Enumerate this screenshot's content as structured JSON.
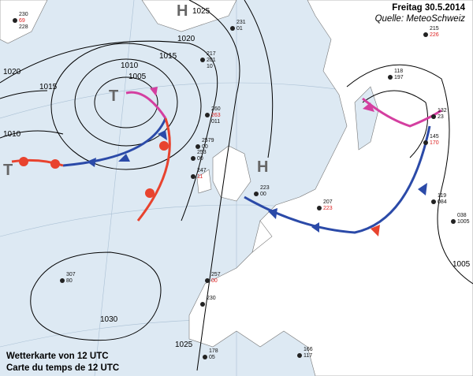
{
  "header": {
    "date": "Freitag 30.5.2014",
    "source": "Quelle: MeteoSchweiz"
  },
  "caption": {
    "line_de": "Wetterkarte von 12 UTC",
    "line_fr": "Carte du temps de 12 UTC"
  },
  "colors": {
    "sea": "#dde9f3",
    "land": "#ffffff",
    "warm_front": "#e8432e",
    "cold_front": "#2b4aa8",
    "occlusion": "#d43fa0",
    "isobar": "#000000"
  },
  "pressure_systems": [
    {
      "type": "H",
      "label": "H"
    },
    {
      "type": "T",
      "label": "T"
    },
    {
      "type": "T",
      "label": "T"
    },
    {
      "type": "H",
      "label": "H"
    }
  ],
  "isobar_labels": [
    "1025",
    "1020",
    "1015",
    "1010",
    "1005",
    "1020",
    "1015",
    "1010",
    "1030",
    "1025",
    "1005"
  ],
  "stations": [
    {
      "vals": [
        "230",
        "69",
        "228"
      ]
    },
    {
      "vals": [
        "231",
        "01"
      ]
    },
    {
      "vals": [
        "217",
        "201",
        "10"
      ]
    },
    {
      "vals": [
        "260",
        "263",
        "011"
      ]
    },
    {
      "vals": [
        "2579",
        "00"
      ]
    },
    {
      "vals": [
        "253",
        "00"
      ]
    },
    {
      "vals": [
        "247",
        "11"
      ]
    },
    {
      "vals": [
        "223",
        "00"
      ]
    },
    {
      "vals": [
        "307",
        "80"
      ]
    },
    {
      "vals": [
        "257",
        "00"
      ]
    },
    {
      "vals": [
        "230"
      ]
    },
    {
      "vals": [
        "178",
        "05"
      ]
    },
    {
      "vals": [
        "215",
        "226"
      ]
    },
    {
      "vals": [
        "118",
        "197"
      ]
    },
    {
      "vals": [
        "132",
        "23"
      ]
    },
    {
      "vals": [
        "145",
        "170"
      ]
    },
    {
      "vals": [
        "119",
        "084"
      ]
    },
    {
      "vals": [
        "038",
        "1005"
      ]
    },
    {
      "vals": [
        "207",
        "223"
      ]
    },
    {
      "vals": [
        "166",
        "117"
      ]
    }
  ]
}
